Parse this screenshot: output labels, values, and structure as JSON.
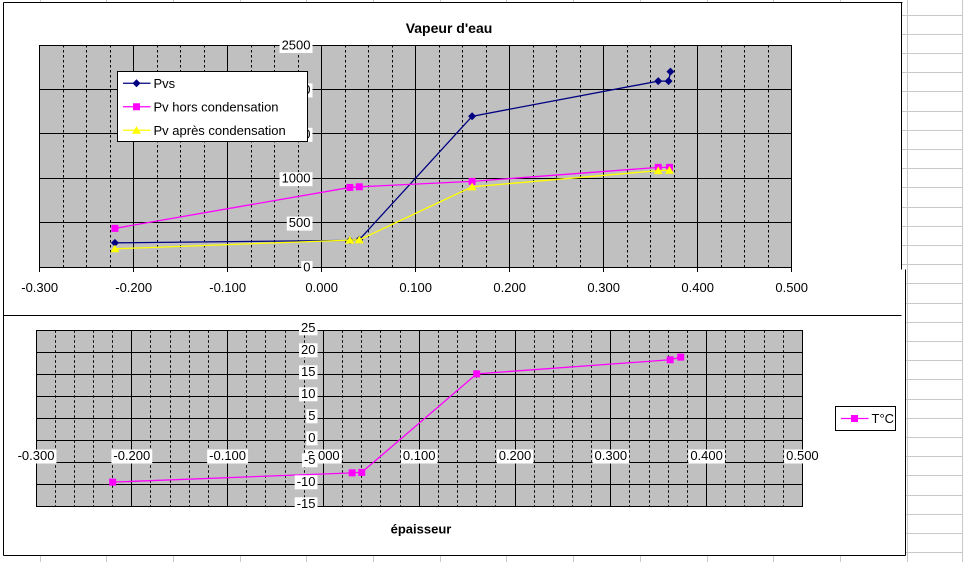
{
  "sheet": {
    "background": "#ffffff",
    "gridline_color": "#c9c9c9"
  },
  "chart_data": [
    {
      "type": "line",
      "title": "Vapeur d'eau",
      "xlabel": "",
      "ylabel": "",
      "xlim": [
        -0.3,
        0.5
      ],
      "ylim": [
        0,
        2500
      ],
      "x_major_step": 0.1,
      "x_minor_step": 0.025,
      "y_major_step": 500,
      "x_tick_labels": [
        "-0.300",
        "-0.200",
        "-0.100",
        "0.000",
        "0.100",
        "0.200",
        "0.300",
        "0.400",
        "0.500"
      ],
      "y_tick_labels": [
        "0",
        "500",
        "1000",
        "1500",
        "2000",
        "2500"
      ],
      "plot_bg": "#c0c0c0",
      "grid": true,
      "legend_position": "inside-top-left",
      "series": [
        {
          "name": "Pvs",
          "color": "#000080",
          "marker": "diamond",
          "points": [
            [
              -0.22,
              272
            ],
            [
              0.03,
              300
            ],
            [
              0.04,
              308
            ],
            [
              0.16,
              1697
            ],
            [
              0.358,
              2093
            ],
            [
              0.369,
              2093
            ],
            [
              0.371,
              2200
            ]
          ]
        },
        {
          "name": "Pv hors condensation",
          "color": "#ff00ff",
          "marker": "square",
          "points": [
            [
              -0.22,
              435
            ],
            [
              0.03,
              896
            ],
            [
              0.04,
              903
            ],
            [
              0.16,
              964
            ],
            [
              0.358,
              1122
            ],
            [
              0.37,
              1122
            ]
          ]
        },
        {
          "name": "Pv après condensation",
          "color": "#ffff00",
          "marker": "triangle",
          "points": [
            [
              -0.22,
              205
            ],
            [
              0.03,
              303
            ],
            [
              0.04,
              306
            ],
            [
              0.16,
              903
            ],
            [
              0.358,
              1085
            ],
            [
              0.37,
              1090
            ]
          ]
        }
      ]
    },
    {
      "type": "line",
      "title": "",
      "xlabel": "épaisseur",
      "ylabel": "",
      "xlim": [
        -0.3,
        0.5
      ],
      "ylim": [
        -15,
        25
      ],
      "x_major_step": 0.1,
      "x_minor_step": 0.02,
      "y_major_step": 5,
      "x_tick_labels": [
        "-0.300",
        "-0.200",
        "-0.100",
        "0.000",
        "0.100",
        "0.200",
        "0.300",
        "0.400",
        "0.500"
      ],
      "y_tick_labels": [
        "-15",
        "-10",
        "-5",
        "0",
        "5",
        "10",
        "15",
        "20",
        "25"
      ],
      "plot_bg": "#c0c0c0",
      "grid": true,
      "legend_position": "outside-right",
      "series": [
        {
          "name": "T°C",
          "color": "#ff00ff",
          "marker": "square",
          "points": [
            [
              -0.22,
              -9.5
            ],
            [
              0.03,
              -7.4
            ],
            [
              0.04,
              -7.3
            ],
            [
              0.16,
              15.1
            ],
            [
              0.362,
              18.3
            ],
            [
              0.373,
              18.9
            ]
          ]
        }
      ]
    }
  ]
}
